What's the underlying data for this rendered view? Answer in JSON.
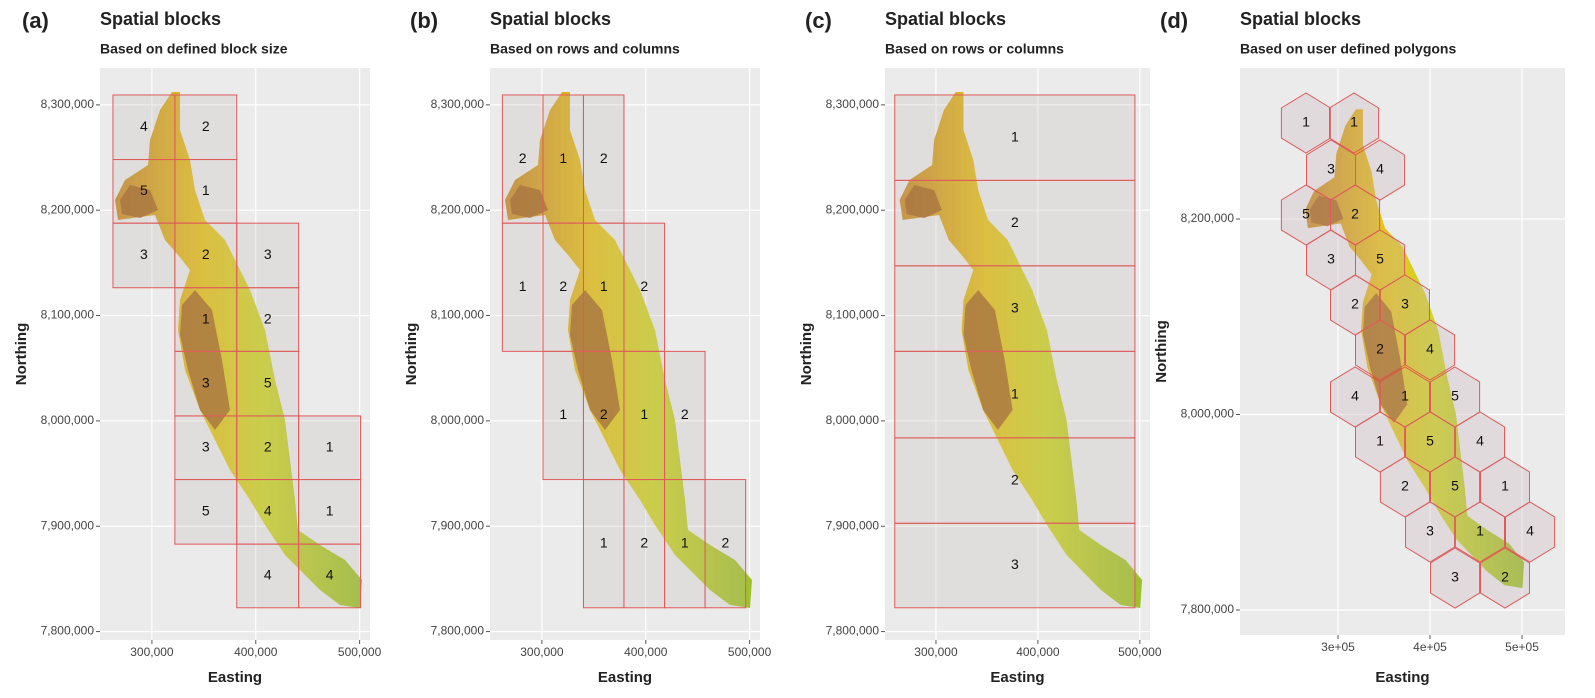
{
  "panels": [
    {
      "tag": "(a)",
      "title": "Spatial blocks",
      "subtitle": "Based on defined block size",
      "x_label": "Easting",
      "y_label": "Northing",
      "xlim": [
        250000,
        510000
      ],
      "ylim": [
        7792000,
        8335000
      ],
      "xticks": [
        {
          "value": 300000,
          "label": "300,000"
        },
        {
          "value": 400000,
          "label": "400,000"
        },
        {
          "value": 500000,
          "label": "500,000"
        }
      ],
      "yticks": [
        {
          "value": 7800000,
          "label": "7,800,000"
        },
        {
          "value": 7900000,
          "label": "7,900,000"
        },
        {
          "value": 8000000,
          "label": "8,000,000"
        },
        {
          "value": 8100000,
          "label": "8,100,000"
        },
        {
          "value": 8200000,
          "label": "8,200,000"
        },
        {
          "value": 8300000,
          "label": "8,300,000"
        }
      ],
      "blocks": [
        {
          "x": [
            262500,
            322100
          ],
          "y": [
            8248100,
            8309400
          ],
          "label": 4
        },
        {
          "x": [
            322100,
            381700
          ],
          "y": [
            8248100,
            8309400
          ],
          "label": 2
        },
        {
          "x": [
            262500,
            322100
          ],
          "y": [
            8187700,
            8248100
          ],
          "label": 5
        },
        {
          "x": [
            322100,
            381700
          ],
          "y": [
            8187700,
            8248100
          ],
          "label": 1
        },
        {
          "x": [
            262500,
            322100
          ],
          "y": [
            8126400,
            8187700
          ],
          "label": 3
        },
        {
          "x": [
            322100,
            381700
          ],
          "y": [
            8126400,
            8187700
          ],
          "label": 2
        },
        {
          "x": [
            381700,
            441300
          ],
          "y": [
            8126400,
            8187700
          ],
          "label": 3
        },
        {
          "x": [
            322100,
            381700
          ],
          "y": [
            8066000,
            8126400
          ],
          "label": 1
        },
        {
          "x": [
            381700,
            441300
          ],
          "y": [
            8066000,
            8126400
          ],
          "label": 2
        },
        {
          "x": [
            322100,
            381700
          ],
          "y": [
            8004700,
            8066000
          ],
          "label": 3
        },
        {
          "x": [
            381700,
            441300
          ],
          "y": [
            8004700,
            8066000
          ],
          "label": 5
        },
        {
          "x": [
            322100,
            381700
          ],
          "y": [
            7944300,
            8004700
          ],
          "label": 3
        },
        {
          "x": [
            381700,
            441300
          ],
          "y": [
            7944300,
            8004700
          ],
          "label": 2
        },
        {
          "x": [
            441300,
            500900
          ],
          "y": [
            7944300,
            8004700
          ],
          "label": 1
        },
        {
          "x": [
            322100,
            381700
          ],
          "y": [
            7883000,
            7944300
          ],
          "label": 5
        },
        {
          "x": [
            381700,
            441300
          ],
          "y": [
            7883000,
            7944300
          ],
          "label": 4
        },
        {
          "x": [
            441300,
            500900
          ],
          "y": [
            7883000,
            7944300
          ],
          "label": 1
        },
        {
          "x": [
            381700,
            441300
          ],
          "y": [
            7822600,
            7883000
          ],
          "label": 4
        },
        {
          "x": [
            441300,
            500900
          ],
          "y": [
            7822600,
            7883000
          ],
          "label": 4
        }
      ]
    },
    {
      "tag": "(b)",
      "title": "Spatial blocks",
      "subtitle": "Based on rows and columns",
      "x_label": "Easting",
      "y_label": "Northing",
      "xlim": [
        250000,
        510000
      ],
      "ylim": [
        7792000,
        8335000
      ],
      "xticks": [
        {
          "value": 300000,
          "label": "300,000"
        },
        {
          "value": 400000,
          "label": "400,000"
        },
        {
          "value": 500000,
          "label": "500,000"
        }
      ],
      "yticks": [
        {
          "value": 7800000,
          "label": "7,800,000"
        },
        {
          "value": 7900000,
          "label": "7,900,000"
        },
        {
          "value": 8000000,
          "label": "8,000,000"
        },
        {
          "value": 8100000,
          "label": "8,100,000"
        },
        {
          "value": 8200000,
          "label": "8,200,000"
        },
        {
          "value": 8300000,
          "label": "8,300,000"
        }
      ],
      "blocks": [
        {
          "x": [
            261900,
            301000
          ],
          "y": [
            8187700,
            8309400
          ],
          "label": 2
        },
        {
          "x": [
            301000,
            340000
          ],
          "y": [
            8187700,
            8309400
          ],
          "label": 1
        },
        {
          "x": [
            340000,
            379000
          ],
          "y": [
            8187700,
            8309400
          ],
          "label": 2
        },
        {
          "x": [
            261900,
            301000
          ],
          "y": [
            8066000,
            8187700
          ],
          "label": 1
        },
        {
          "x": [
            301000,
            340000
          ],
          "y": [
            8066000,
            8187700
          ],
          "label": 2
        },
        {
          "x": [
            340000,
            379000
          ],
          "y": [
            8066000,
            8187700
          ],
          "label": 1
        },
        {
          "x": [
            379000,
            418100
          ],
          "y": [
            8066000,
            8187700
          ],
          "label": 2
        },
        {
          "x": [
            301000,
            340000
          ],
          "y": [
            7944300,
            8066000
          ],
          "label": 1
        },
        {
          "x": [
            340000,
            379000
          ],
          "y": [
            7944300,
            8066000
          ],
          "label": 2
        },
        {
          "x": [
            379000,
            418100
          ],
          "y": [
            7944300,
            8066000
          ],
          "label": 1
        },
        {
          "x": [
            418100,
            457100
          ],
          "y": [
            7944300,
            8066000
          ],
          "label": 2
        },
        {
          "x": [
            340000,
            379000
          ],
          "y": [
            7822600,
            7944300
          ],
          "label": 1
        },
        {
          "x": [
            379000,
            418100
          ],
          "y": [
            7822600,
            7944300
          ],
          "label": 2
        },
        {
          "x": [
            418100,
            457100
          ],
          "y": [
            7822600,
            7944300
          ],
          "label": 1
        },
        {
          "x": [
            457100,
            496200
          ],
          "y": [
            7822600,
            7944300
          ],
          "label": 2
        }
      ]
    },
    {
      "tag": "(c)",
      "title": "Spatial blocks",
      "subtitle": "Based on rows or columns",
      "x_label": "Easting",
      "y_label": "Northing",
      "xlim": [
        250000,
        510000
      ],
      "ylim": [
        7792000,
        8335000
      ],
      "xticks": [
        {
          "value": 300000,
          "label": "300,000"
        },
        {
          "value": 400000,
          "label": "400,000"
        },
        {
          "value": 500000,
          "label": "500,000"
        }
      ],
      "yticks": [
        {
          "value": 7800000,
          "label": "7,800,000"
        },
        {
          "value": 7900000,
          "label": "7,900,000"
        },
        {
          "value": 8000000,
          "label": "8,000,000"
        },
        {
          "value": 8100000,
          "label": "8,100,000"
        },
        {
          "value": 8200000,
          "label": "8,200,000"
        },
        {
          "value": 8300000,
          "label": "8,300,000"
        }
      ],
      "blocks": [
        {
          "x": [
            259600,
            495200
          ],
          "y": [
            8228300,
            8309400
          ],
          "label": 1
        },
        {
          "x": [
            259600,
            495200
          ],
          "y": [
            8147200,
            8228300
          ],
          "label": 2
        },
        {
          "x": [
            259600,
            495200
          ],
          "y": [
            8066000,
            8147200
          ],
          "label": 3
        },
        {
          "x": [
            259600,
            495200
          ],
          "y": [
            7983900,
            8066000
          ],
          "label": 1
        },
        {
          "x": [
            259600,
            495200
          ],
          "y": [
            7902800,
            7983900
          ],
          "label": 2
        },
        {
          "x": [
            259600,
            495200
          ],
          "y": [
            7822600,
            7902800
          ],
          "label": 3
        }
      ]
    },
    {
      "tag": "(d)",
      "title": "Spatial blocks",
      "subtitle": "Based on user defined polygons",
      "x_label": "Easting",
      "y_label": "Northing",
      "xlim": [
        193500,
        546700
      ],
      "ylim": [
        7774400,
        8354500
      ],
      "xticks": [
        {
          "value": 300000,
          "label": "3e+05"
        },
        {
          "value": 400000,
          "label": "4e+05"
        },
        {
          "value": 500000,
          "label": "5e+05"
        }
      ],
      "yticks": [
        {
          "value": 7800000,
          "label": "7,800,000"
        },
        {
          "value": 8000000,
          "label": "8,000,000"
        },
        {
          "value": 8200000,
          "label": "8,200,000"
        }
      ],
      "hex_radius": 30800,
      "hexagons": [
        {
          "x": 265200,
          "y": 8298200,
          "label": 1
        },
        {
          "x": 317400,
          "y": 8298200,
          "label": 1
        },
        {
          "x": 292400,
          "y": 8250100,
          "label": 3
        },
        {
          "x": 345700,
          "y": 8250100,
          "label": 4
        },
        {
          "x": 265200,
          "y": 8204100,
          "label": 5
        },
        {
          "x": 318500,
          "y": 8204100,
          "label": 2
        },
        {
          "x": 292400,
          "y": 8158100,
          "label": 3
        },
        {
          "x": 345700,
          "y": 8158100,
          "label": 5
        },
        {
          "x": 318500,
          "y": 8112000,
          "label": 2
        },
        {
          "x": 372800,
          "y": 8112000,
          "label": 3
        },
        {
          "x": 345700,
          "y": 8066000,
          "label": 2
        },
        {
          "x": 400000,
          "y": 8066000,
          "label": 4
        },
        {
          "x": 318500,
          "y": 8017900,
          "label": 4
        },
        {
          "x": 372800,
          "y": 8017900,
          "label": 1
        },
        {
          "x": 427200,
          "y": 8017900,
          "label": 5
        },
        {
          "x": 345700,
          "y": 7971900,
          "label": 1
        },
        {
          "x": 400000,
          "y": 7971900,
          "label": 5
        },
        {
          "x": 454300,
          "y": 7971900,
          "label": 4
        },
        {
          "x": 372800,
          "y": 7925800,
          "label": 2
        },
        {
          "x": 427200,
          "y": 7925800,
          "label": 5
        },
        {
          "x": 481500,
          "y": 7925800,
          "label": 1
        },
        {
          "x": 400000,
          "y": 7879800,
          "label": 3
        },
        {
          "x": 454300,
          "y": 7879800,
          "label": 1
        },
        {
          "x": 508700,
          "y": 7879800,
          "label": 4
        },
        {
          "x": 427200,
          "y": 7832700,
          "label": 3
        },
        {
          "x": 481500,
          "y": 7832700,
          "label": 2
        }
      ]
    }
  ]
}
